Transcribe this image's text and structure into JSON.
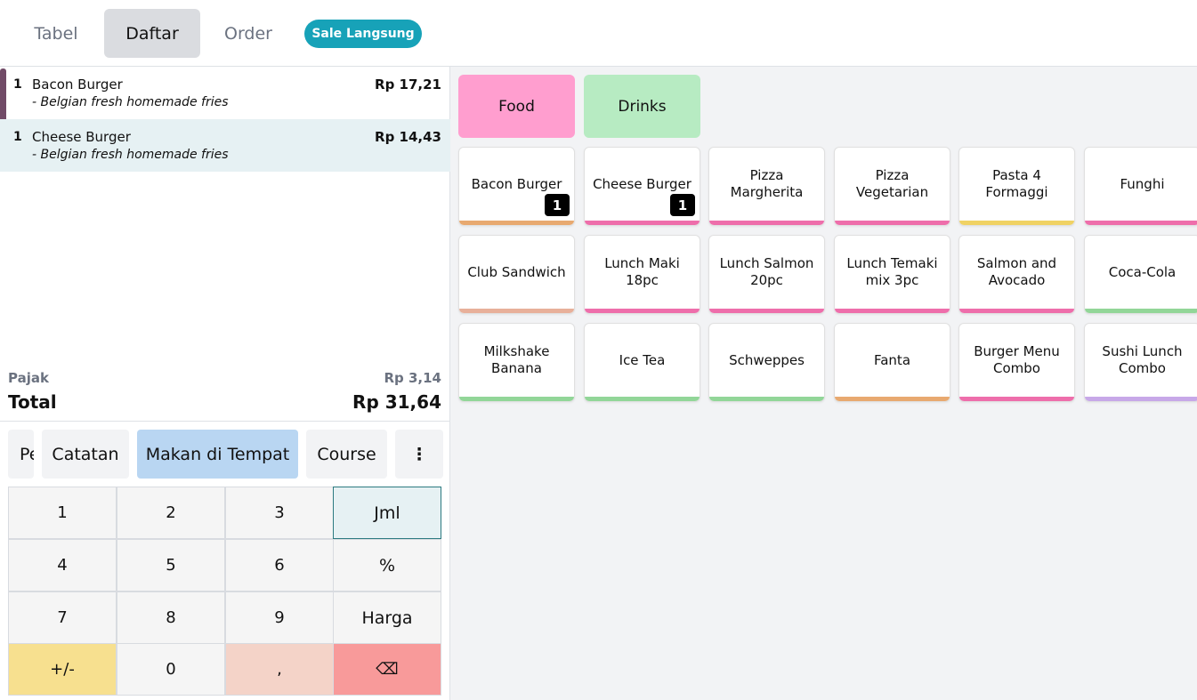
{
  "header": {
    "tabs": [
      "Tabel",
      "Daftar",
      "Order"
    ],
    "sale_pill": "Sale Langsung"
  },
  "order": {
    "lines": [
      {
        "qty": "1",
        "name": "Bacon Burger",
        "price": "Rp 17,21",
        "note": "- Belgian fresh homemade fries"
      },
      {
        "qty": "1",
        "name": "Cheese Burger",
        "price": "Rp 14,43",
        "note": "- Belgian fresh homemade fries"
      }
    ],
    "tax_label": "Pajak",
    "tax_value": "Rp 3,14",
    "total_label": "Total",
    "total_value": "Rp 31,64"
  },
  "controls": {
    "customer_partial": "Pe",
    "note": "Catatan",
    "dine_in": "Makan di Tempat",
    "course": "Course",
    "more": "⋮"
  },
  "numpad": {
    "keys": [
      "1",
      "2",
      "3",
      "Jml",
      "4",
      "5",
      "6",
      "%",
      "7",
      "8",
      "9",
      "Harga",
      "+/-",
      "0",
      ",",
      "⌫"
    ]
  },
  "categories": [
    {
      "label": "Food",
      "color": "#ff9ecf"
    },
    {
      "label": "Drinks",
      "color": "#b7ebc2"
    }
  ],
  "products": [
    {
      "name": "Bacon Burger",
      "color": "#e8a970",
      "qty": "1"
    },
    {
      "name": "Cheese Burger",
      "color": "#ee6eab",
      "qty": "1"
    },
    {
      "name": "Pizza Margherita",
      "color": "#ee6eab"
    },
    {
      "name": "Pizza Vegetarian",
      "color": "#ee6eab"
    },
    {
      "name": "Pasta 4 Formaggi",
      "color": "#f0d264"
    },
    {
      "name": "Funghi",
      "color": "#ee6eab"
    },
    {
      "name": "Club Sandwich",
      "color": "#e8b09a"
    },
    {
      "name": "Lunch Maki 18pc",
      "color": "#ee6eab"
    },
    {
      "name": "Lunch Salmon 20pc",
      "color": "#ee6eab"
    },
    {
      "name": "Lunch Temaki mix 3pc",
      "color": "#ee6eab"
    },
    {
      "name": "Salmon and Avocado",
      "color": "#ee6eab"
    },
    {
      "name": "Coca-Cola",
      "color": "#92d698"
    },
    {
      "name": "Milkshake Banana",
      "color": "#92d698"
    },
    {
      "name": "Ice Tea",
      "color": "#92d698"
    },
    {
      "name": "Schweppes",
      "color": "#92d698"
    },
    {
      "name": "Fanta",
      "color": "#e8a970"
    },
    {
      "name": "Burger Menu Combo",
      "color": "#ee6eab"
    },
    {
      "name": "Sushi Lunch Combo",
      "color": "#c7a8e8"
    }
  ]
}
